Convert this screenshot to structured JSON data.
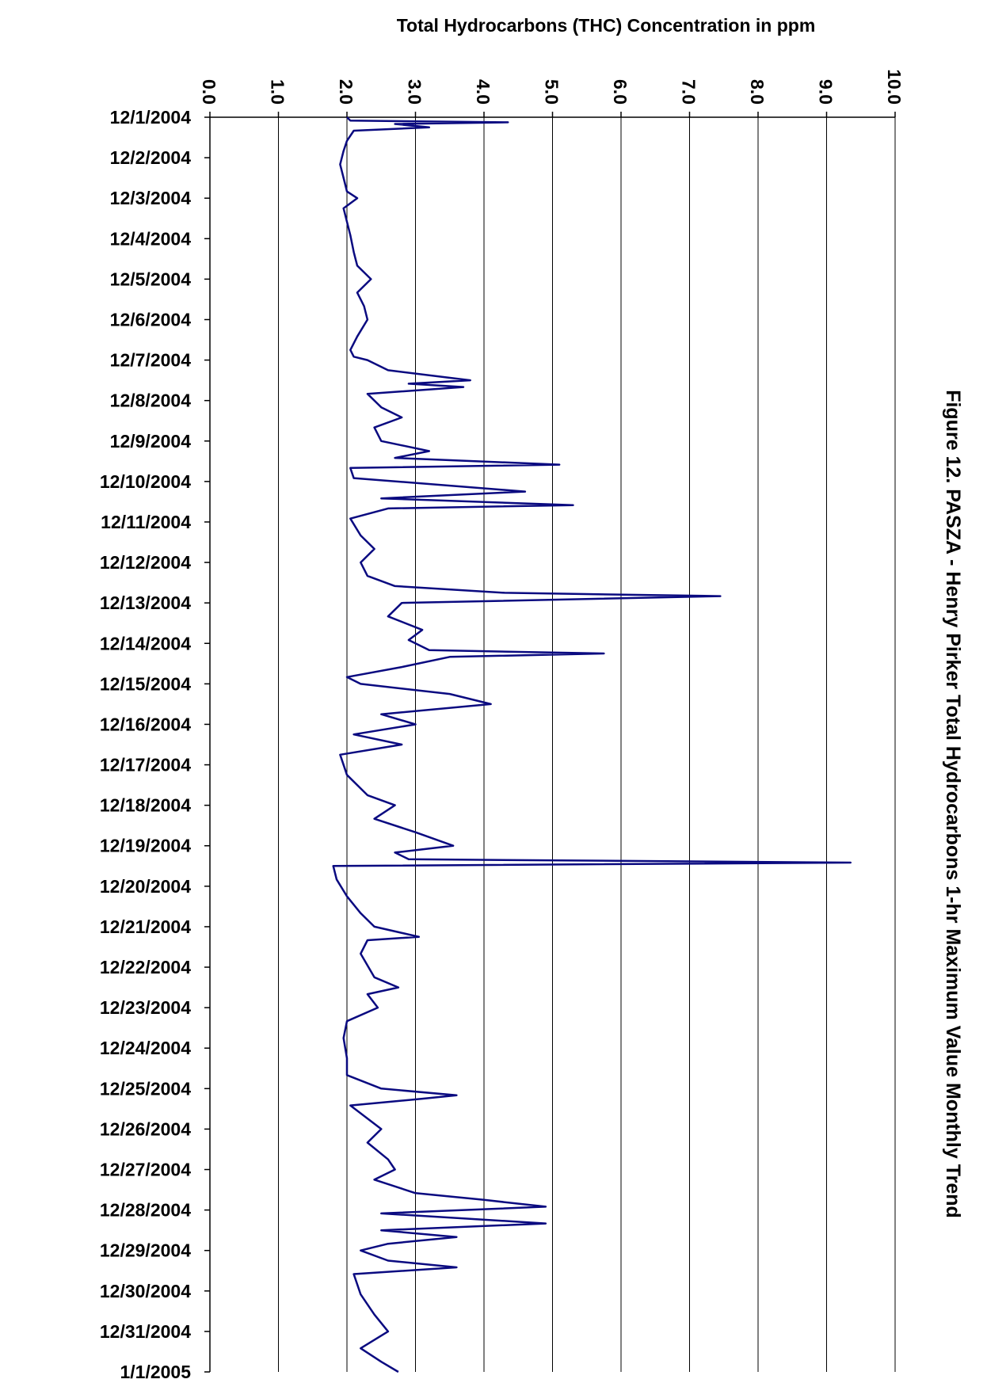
{
  "chart_data": {
    "type": "line",
    "title": "Figure 12.  PASZA - Henry Pirker Total Hydrocarbons 1-hr Maximum Value Monthly Trend",
    "value_axis_label": "Total Hydrocarbons (THC) Concentration in ppm",
    "value_axis_range": [
      0,
      10
    ],
    "value_ticks": [
      "0.0",
      "1.0",
      "2.0",
      "3.0",
      "4.0",
      "5.0",
      "6.0",
      "7.0",
      "8.0",
      "9.0",
      "10.0"
    ],
    "date_ticks": [
      "12/1/2004",
      "12/2/2004",
      "12/3/2004",
      "12/4/2004",
      "12/5/2004",
      "12/6/2004",
      "12/7/2004",
      "12/8/2004",
      "12/9/2004",
      "12/10/2004",
      "12/11/2004",
      "12/12/2004",
      "12/13/2004",
      "12/14/2004",
      "12/15/2004",
      "12/16/2004",
      "12/17/2004",
      "12/18/2004",
      "12/19/2004",
      "12/20/2004",
      "12/21/2004",
      "12/22/2004",
      "12/23/2004",
      "12/24/2004",
      "12/25/2004",
      "12/26/2004",
      "12/27/2004",
      "12/28/2004",
      "12/29/2004",
      "12/30/2004",
      "12/31/2004",
      "1/1/2005"
    ],
    "grid": true,
    "line_color": "#0a0a80",
    "series": [
      {
        "points": [
          [
            "12/1/2004 00:00",
            2.0
          ],
          [
            "12/1/2004 02:00",
            2.05
          ],
          [
            "12/1/2004 03:00",
            4.35
          ],
          [
            "12/1/2004 04:00",
            2.7
          ],
          [
            "12/1/2004 06:00",
            3.2
          ],
          [
            "12/1/2004 08:00",
            2.1
          ],
          [
            "12/1/2004 14:00",
            2.0
          ],
          [
            "12/1/2004 20:00",
            1.95
          ],
          [
            "12/2/2004 04:00",
            1.9
          ],
          [
            "12/2/2004 12:00",
            1.95
          ],
          [
            "12/2/2004 20:00",
            2.0
          ],
          [
            "12/3/2004 00:00",
            2.15
          ],
          [
            "12/3/2004 06:00",
            1.95
          ],
          [
            "12/3/2004 14:00",
            2.0
          ],
          [
            "12/3/2004 22:00",
            2.05
          ],
          [
            "12/4/2004 08:00",
            2.1
          ],
          [
            "12/4/2004 16:00",
            2.15
          ],
          [
            "12/5/2004 00:00",
            2.35
          ],
          [
            "12/5/2004 08:00",
            2.15
          ],
          [
            "12/5/2004 16:00",
            2.25
          ],
          [
            "12/6/2004 00:00",
            2.3
          ],
          [
            "12/6/2004 10:00",
            2.15
          ],
          [
            "12/6/2004 18:00",
            2.05
          ],
          [
            "12/6/2004 22:00",
            2.1
          ],
          [
            "12/7/2004 00:00",
            2.3
          ],
          [
            "12/7/2004 06:00",
            2.6
          ],
          [
            "12/7/2004 12:00",
            3.8
          ],
          [
            "12/7/2004 14:00",
            2.9
          ],
          [
            "12/7/2004 16:00",
            3.7
          ],
          [
            "12/7/2004 20:00",
            2.3
          ],
          [
            "12/8/2004 04:00",
            2.5
          ],
          [
            "12/8/2004 10:00",
            2.8
          ],
          [
            "12/8/2004 16:00",
            2.4
          ],
          [
            "12/9/2004 00:00",
            2.5
          ],
          [
            "12/9/2004 06:00",
            3.2
          ],
          [
            "12/9/2004 10:00",
            2.7
          ],
          [
            "12/9/2004 14:00",
            5.1
          ],
          [
            "12/9/2004 16:00",
            2.05
          ],
          [
            "12/9/2004 22:00",
            2.1
          ],
          [
            "12/10/2004 06:00",
            4.6
          ],
          [
            "12/10/2004 10:00",
            2.5
          ],
          [
            "12/10/2004 14:00",
            5.3
          ],
          [
            "12/10/2004 16:00",
            2.6
          ],
          [
            "12/10/2004 22:00",
            2.05
          ],
          [
            "12/11/2004 08:00",
            2.2
          ],
          [
            "12/11/2004 16:00",
            2.4
          ],
          [
            "12/12/2004 00:00",
            2.2
          ],
          [
            "12/12/2004 08:00",
            2.3
          ],
          [
            "12/12/2004 14:00",
            2.7
          ],
          [
            "12/12/2004 18:00",
            4.3
          ],
          [
            "12/12/2004 20:00",
            7.45
          ],
          [
            "12/13/2004 00:00",
            2.8
          ],
          [
            "12/13/2004 08:00",
            2.6
          ],
          [
            "12/13/2004 16:00",
            3.1
          ],
          [
            "12/13/2004 22:00",
            2.9
          ],
          [
            "12/14/2004 04:00",
            3.2
          ],
          [
            "12/14/2004 06:00",
            5.75
          ],
          [
            "12/14/2004 08:00",
            3.5
          ],
          [
            "12/14/2004 14:00",
            2.8
          ],
          [
            "12/14/2004 20:00",
            2.0
          ],
          [
            "12/15/2004 00:00",
            2.2
          ],
          [
            "12/15/2004 06:00",
            3.5
          ],
          [
            "12/15/2004 12:00",
            4.1
          ],
          [
            "12/15/2004 18:00",
            2.5
          ],
          [
            "12/16/2004 00:00",
            3.0
          ],
          [
            "12/16/2004 06:00",
            2.1
          ],
          [
            "12/16/2004 12:00",
            2.8
          ],
          [
            "12/16/2004 18:00",
            1.9
          ],
          [
            "12/17/2004 06:00",
            2.0
          ],
          [
            "12/17/2004 18:00",
            2.3
          ],
          [
            "12/18/2004 00:00",
            2.7
          ],
          [
            "12/18/2004 08:00",
            2.4
          ],
          [
            "12/18/2004 16:00",
            3.0
          ],
          [
            "12/19/2004 00:00",
            3.55
          ],
          [
            "12/19/2004 04:00",
            2.7
          ],
          [
            "12/19/2004 08:00",
            2.9
          ],
          [
            "12/19/2004 10:00",
            9.35
          ],
          [
            "12/19/2004 12:00",
            1.8
          ],
          [
            "12/19/2004 20:00",
            1.85
          ],
          [
            "12/20/2004 06:00",
            2.0
          ],
          [
            "12/20/2004 16:00",
            2.2
          ],
          [
            "12/21/2004 00:00",
            2.4
          ],
          [
            "12/21/2004 06:00",
            3.05
          ],
          [
            "12/21/2004 08:00",
            2.3
          ],
          [
            "12/21/2004 16:00",
            2.2
          ],
          [
            "12/22/2004 06:00",
            2.4
          ],
          [
            "12/22/2004 12:00",
            2.75
          ],
          [
            "12/22/2004 16:00",
            2.3
          ],
          [
            "12/23/2004 00:00",
            2.45
          ],
          [
            "12/23/2004 08:00",
            2.0
          ],
          [
            "12/23/2004 18:00",
            1.95
          ],
          [
            "12/24/2004 06:00",
            2.0
          ],
          [
            "12/24/2004 16:00",
            2.0
          ],
          [
            "12/25/2004 00:00",
            2.5
          ],
          [
            "12/25/2004 04:00",
            3.6
          ],
          [
            "12/25/2004 06:00",
            3.1
          ],
          [
            "12/25/2004 10:00",
            2.05
          ],
          [
            "12/26/2004 00:00",
            2.5
          ],
          [
            "12/26/2004 08:00",
            2.3
          ],
          [
            "12/26/2004 18:00",
            2.6
          ],
          [
            "12/27/2004 00:00",
            2.7
          ],
          [
            "12/27/2004 06:00",
            2.4
          ],
          [
            "12/27/2004 14:00",
            3.0
          ],
          [
            "12/27/2004 18:00",
            4.0
          ],
          [
            "12/27/2004 22:00",
            4.9
          ],
          [
            "12/28/2004 02:00",
            2.5
          ],
          [
            "12/28/2004 08:00",
            4.9
          ],
          [
            "12/28/2004 12:00",
            2.5
          ],
          [
            "12/28/2004 16:00",
            3.6
          ],
          [
            "12/28/2004 20:00",
            2.6
          ],
          [
            "12/29/2004 00:00",
            2.2
          ],
          [
            "12/29/2004 06:00",
            2.6
          ],
          [
            "12/29/2004 10:00",
            3.6
          ],
          [
            "12/29/2004 14:00",
            2.1
          ],
          [
            "12/30/2004 02:00",
            2.2
          ],
          [
            "12/30/2004 14:00",
            2.4
          ],
          [
            "12/31/2004 00:00",
            2.6
          ],
          [
            "12/31/2004 10:00",
            2.2
          ],
          [
            "12/31/2004 18:00",
            2.5
          ],
          [
            "1/1/2005 00:00",
            2.75
          ]
        ]
      }
    ]
  }
}
